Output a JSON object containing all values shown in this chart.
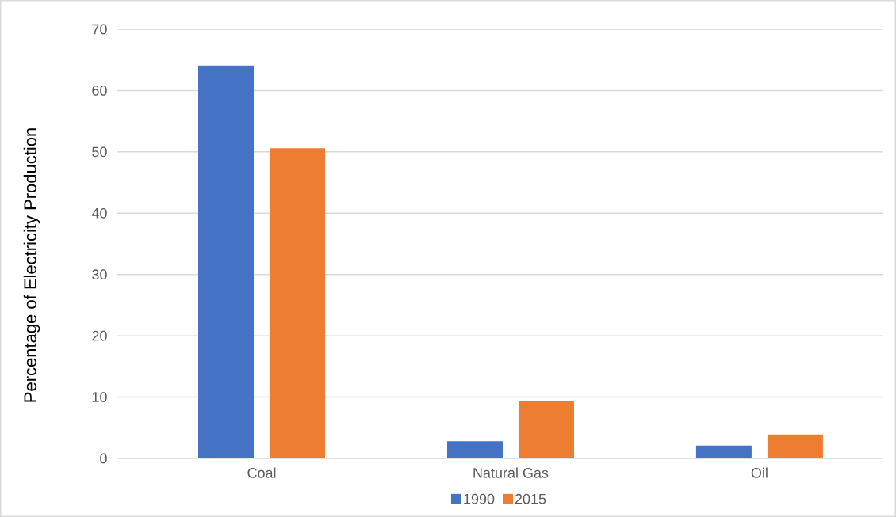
{
  "chart_data": {
    "type": "bar",
    "ylabel": "Percentage  of Electricity Production",
    "categories": [
      "Coal",
      "Natural Gas",
      "Oil"
    ],
    "series": [
      {
        "name": "1990",
        "color": "#4472c4",
        "values": [
          64.1,
          2.8,
          2.1
        ]
      },
      {
        "name": "2015",
        "color": "#ed7d31",
        "values": [
          50.6,
          9.4,
          3.9
        ]
      }
    ],
    "ylim": [
      0,
      70
    ],
    "yticks": [
      0,
      10,
      20,
      30,
      40,
      50,
      60,
      70
    ],
    "grid": "y",
    "legend": "bottom"
  }
}
